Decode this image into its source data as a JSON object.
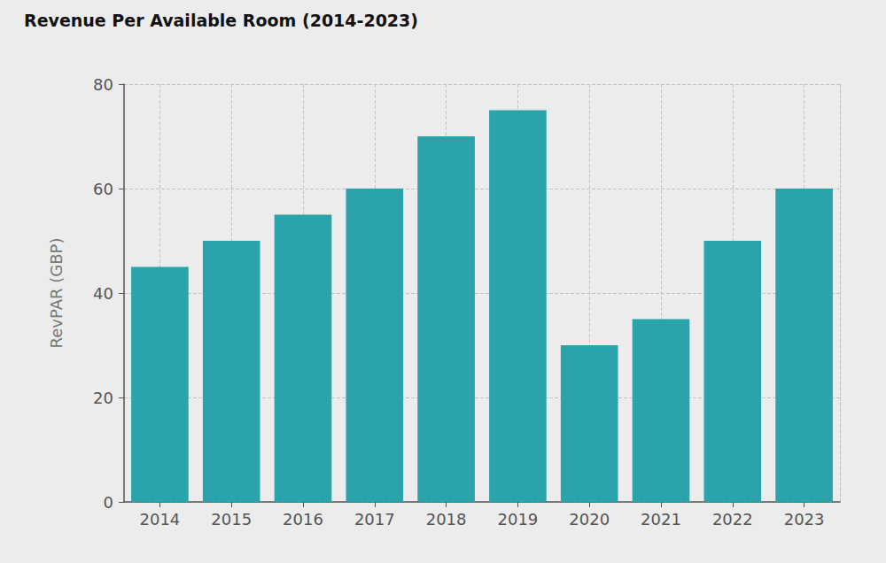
{
  "chart_data": {
    "type": "bar",
    "title": "Revenue Per Available Room (2014-2023)",
    "y_label": "RevPAR (GBP)",
    "categories": [
      "2014",
      "2015",
      "2016",
      "2017",
      "2018",
      "2019",
      "2020",
      "2021",
      "2022",
      "2023"
    ],
    "values": [
      45,
      50,
      55,
      60,
      70,
      75,
      30,
      35,
      50,
      60
    ],
    "color": "#2aa3ab",
    "ylim": [
      0,
      80
    ],
    "yticks": [
      0,
      20,
      40,
      60,
      80
    ],
    "grid": true
  }
}
